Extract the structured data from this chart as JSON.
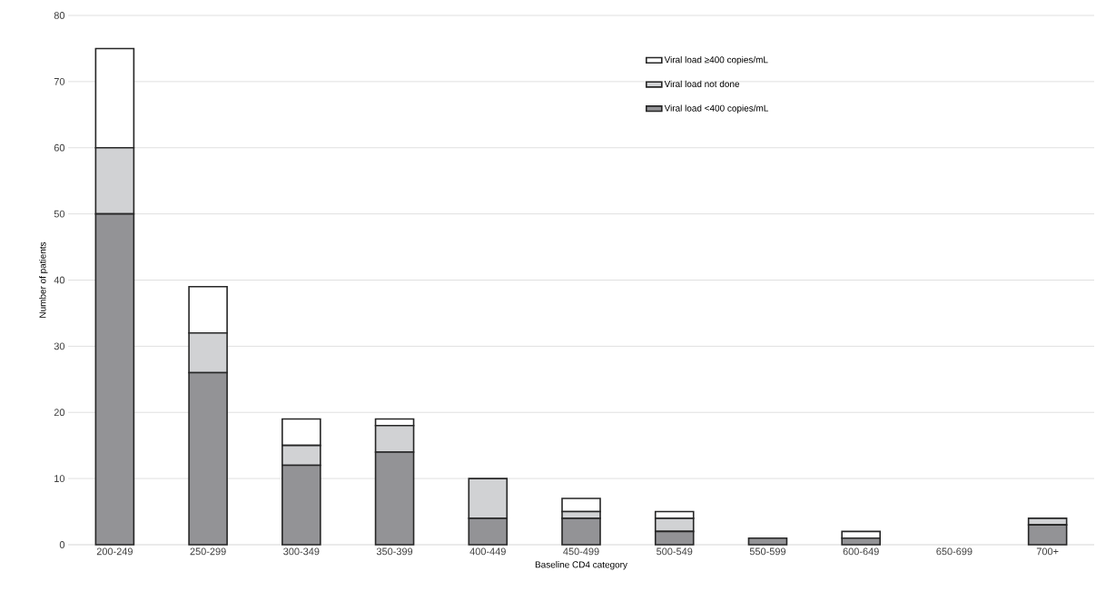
{
  "chart_data": {
    "type": "bar",
    "stacked": true,
    "xlabel": "Baseline CD4 category",
    "ylabel": "Number of patients",
    "categories": [
      "200-249",
      "250-299",
      "300-349",
      "350-399",
      "400-449",
      "450-499",
      "500-549",
      "550-599",
      "600-649",
      "650-699",
      "700+"
    ],
    "series": [
      {
        "name": "Viral load <400 copies/mL",
        "color": "#939396",
        "values": [
          50,
          26,
          12,
          14,
          4,
          4,
          2,
          1,
          1,
          0,
          3
        ]
      },
      {
        "name": "Viral load not done",
        "color": "#d1d2d4",
        "values": [
          10,
          6,
          3,
          4,
          6,
          1,
          2,
          0,
          0,
          0,
          1
        ]
      },
      {
        "name": "Viral load ≥400 copies/mL",
        "color": "#ffffff",
        "values": [
          15,
          7,
          4,
          1,
          0,
          2,
          1,
          0,
          1,
          0,
          0
        ]
      }
    ],
    "ylim": [
      0,
      80
    ],
    "yticks": [
      0,
      10,
      20,
      30,
      40,
      50,
      60,
      70,
      80
    ],
    "grid": "y",
    "legend": "top right"
  }
}
